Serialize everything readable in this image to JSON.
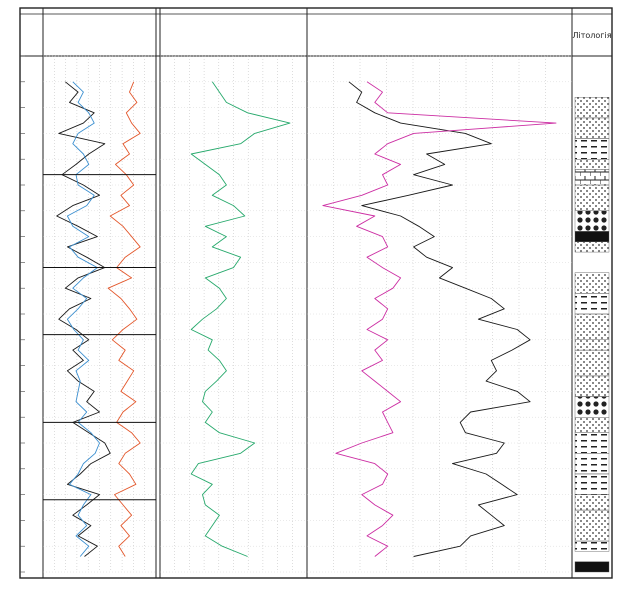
{
  "chart_data": {
    "type": "line",
    "title": "",
    "ylabel": "",
    "xlabel": "",
    "grid": true,
    "depth_range": [
      0,
      100
    ],
    "lithology_header": "Лiтологiя",
    "tracks": [
      {
        "id": "track-1",
        "header_label": "",
        "x_range": [
          0,
          100
        ],
        "ticks": [],
        "series": [
          {
            "name": "",
            "color": "#1a1a1a",
            "depth": [
              5,
              7,
              9,
              11,
              13,
              15,
              17,
              19,
              21,
              23,
              25,
              27,
              29,
              31,
              33,
              35,
              37,
              39,
              41,
              43,
              45,
              47,
              49,
              51,
              53,
              55,
              57,
              59,
              61,
              63,
              65,
              67,
              69,
              71,
              73,
              75,
              77,
              79,
              81,
              83,
              85,
              87,
              89,
              91,
              93,
              95,
              97
            ],
            "values": [
              18,
              30,
              22,
              45,
              35,
              12,
              55,
              40,
              28,
              15,
              35,
              50,
              25,
              10,
              30,
              48,
              20,
              38,
              55,
              30,
              18,
              42,
              22,
              12,
              28,
              40,
              25,
              35,
              20,
              30,
              45,
              38,
              50,
              25,
              40,
              55,
              60,
              42,
              32,
              20,
              50,
              38,
              25,
              42,
              30,
              48,
              36
            ]
          },
          {
            "name": "",
            "color": "#3b8fd0",
            "depth": [
              5,
              7,
              9,
              11,
              13,
              15,
              17,
              19,
              21,
              23,
              25,
              27,
              29,
              31,
              33,
              35,
              37,
              39,
              41,
              43,
              45,
              47,
              49,
              51,
              53,
              55,
              57,
              59,
              61,
              63,
              65,
              67,
              69,
              71,
              73,
              75,
              77,
              79,
              81,
              83,
              85,
              87,
              89,
              91,
              93,
              95,
              97
            ],
            "values": [
              25,
              35,
              30,
              40,
              45,
              30,
              25,
              35,
              40,
              28,
              30,
              45,
              38,
              20,
              25,
              40,
              22,
              30,
              48,
              35,
              25,
              38,
              30,
              20,
              26,
              35,
              30,
              40,
              28,
              32,
              30,
              28,
              38,
              30,
              42,
              50,
              46,
              35,
              30,
              22,
              42,
              35,
              30,
              38,
              28,
              40,
              32
            ]
          },
          {
            "name": "",
            "color": "#e3572b",
            "depth": [
              5,
              7,
              9,
              11,
              13,
              15,
              17,
              19,
              21,
              23,
              25,
              27,
              29,
              31,
              33,
              35,
              37,
              39,
              41,
              43,
              45,
              47,
              49,
              51,
              53,
              55,
              57,
              59,
              61,
              63,
              65,
              67,
              69,
              71,
              73,
              75,
              77,
              79,
              81,
              83,
              85,
              87,
              89,
              91,
              93,
              95,
              97
            ],
            "values": [
              82,
              78,
              85,
              75,
              80,
              88,
              72,
              78,
              65,
              75,
              82,
              70,
              78,
              60,
              72,
              80,
              88,
              74,
              66,
              80,
              58,
              70,
              78,
              85,
              72,
              62,
              74,
              68,
              82,
              76,
              70,
              84,
              72,
              66,
              80,
              88,
              74,
              68,
              78,
              84,
              64,
              72,
              80,
              70,
              78,
              68,
              74
            ]
          }
        ]
      },
      {
        "id": "track-2",
        "header_label": "",
        "x_range": [
          0,
          100
        ],
        "ticks": [],
        "series": [
          {
            "name": "",
            "color": "#27a96c",
            "depth": [
              5,
              7,
              9,
              11,
              13,
              15,
              17,
              19,
              21,
              23,
              25,
              27,
              29,
              31,
              33,
              35,
              37,
              39,
              41,
              43,
              45,
              47,
              49,
              51,
              53,
              55,
              57,
              59,
              61,
              63,
              65,
              67,
              69,
              71,
              73,
              75,
              77,
              79,
              81,
              83,
              85,
              87,
              89,
              91,
              93,
              95,
              97
            ],
            "values": [
              35,
              40,
              45,
              60,
              90,
              65,
              55,
              20,
              30,
              40,
              45,
              35,
              50,
              58,
              30,
              45,
              35,
              55,
              50,
              30,
              40,
              45,
              38,
              28,
              20,
              35,
              32,
              40,
              45,
              38,
              30,
              28,
              35,
              30,
              40,
              65,
              55,
              25,
              20,
              35,
              28,
              30,
              40,
              35,
              30,
              42,
              60
            ]
          }
        ]
      },
      {
        "id": "track-3",
        "header_label": "",
        "x_range": [
          0,
          100
        ],
        "ticks": [],
        "series": [
          {
            "name": "",
            "color": "#1a1a1a",
            "depth": [
              5,
              7,
              9,
              11,
              13,
              15,
              17,
              19,
              21,
              23,
              25,
              27,
              29,
              31,
              33,
              35,
              37,
              39,
              41,
              43,
              45,
              47,
              49,
              51,
              53,
              55,
              57,
              59,
              61,
              63,
              65,
              67,
              69,
              71,
              73,
              75,
              77,
              79,
              81,
              83,
              85,
              87,
              89,
              91,
              93,
              95,
              97
            ],
            "values": [
              15,
              20,
              18,
              25,
              35,
              60,
              70,
              45,
              52,
              40,
              55,
              38,
              20,
              35,
              42,
              48,
              40,
              45,
              55,
              50,
              60,
              70,
              75,
              65,
              80,
              85,
              78,
              70,
              72,
              68,
              80,
              85,
              62,
              58,
              60,
              75,
              72,
              55,
              68,
              74,
              80,
              65,
              70,
              75,
              62,
              58,
              40
            ]
          },
          {
            "name": "",
            "color": "#cc2ea3",
            "depth": [
              5,
              7,
              9,
              11,
              13,
              15,
              17,
              19,
              21,
              23,
              25,
              27,
              29,
              31,
              33,
              35,
              37,
              39,
              41,
              43,
              45,
              47,
              49,
              51,
              53,
              55,
              57,
              59,
              61,
              63,
              65,
              67,
              69,
              71,
              73,
              75,
              77,
              79,
              81,
              83,
              85,
              87,
              89,
              91,
              93,
              95,
              97
            ],
            "values": [
              22,
              28,
              25,
              30,
              95,
              40,
              30,
              25,
              35,
              28,
              30,
              20,
              5,
              25,
              18,
              28,
              30,
              22,
              28,
              35,
              32,
              25,
              30,
              28,
              22,
              30,
              25,
              28,
              20,
              25,
              30,
              35,
              28,
              30,
              32,
              20,
              10,
              25,
              30,
              28,
              20,
              25,
              32,
              28,
              22,
              30,
              25
            ]
          }
        ]
      }
    ],
    "lithology": [
      {
        "from": 8,
        "to": 12,
        "pattern": "dots"
      },
      {
        "from": 12,
        "to": 16,
        "pattern": "dots"
      },
      {
        "from": 16,
        "to": 20,
        "pattern": "dashes"
      },
      {
        "from": 20,
        "to": 22,
        "pattern": "dots"
      },
      {
        "from": 22,
        "to": 25,
        "pattern": "bricks"
      },
      {
        "from": 25,
        "to": 30,
        "pattern": "dots"
      },
      {
        "from": 30,
        "to": 34,
        "pattern": "circles"
      },
      {
        "from": 34,
        "to": 36,
        "pattern": "solid"
      },
      {
        "from": 36,
        "to": 38,
        "pattern": "dots"
      },
      {
        "from": 42,
        "to": 46,
        "pattern": "dots"
      },
      {
        "from": 46,
        "to": 50,
        "pattern": "dashes"
      },
      {
        "from": 50,
        "to": 55,
        "pattern": "dots"
      },
      {
        "from": 55,
        "to": 57,
        "pattern": "dots"
      },
      {
        "from": 57,
        "to": 62,
        "pattern": "dots"
      },
      {
        "from": 62,
        "to": 66,
        "pattern": "dots"
      },
      {
        "from": 66,
        "to": 70,
        "pattern": "circles"
      },
      {
        "from": 70,
        "to": 73,
        "pattern": "dots"
      },
      {
        "from": 73,
        "to": 77,
        "pattern": "dashes"
      },
      {
        "from": 77,
        "to": 81,
        "pattern": "dashes"
      },
      {
        "from": 81,
        "to": 85,
        "pattern": "dashes"
      },
      {
        "from": 85,
        "to": 88,
        "pattern": "dots"
      },
      {
        "from": 88,
        "to": 94,
        "pattern": "dots"
      },
      {
        "from": 94,
        "to": 96,
        "pattern": "dashes"
      },
      {
        "from": 98,
        "to": 100,
        "pattern": "solid"
      }
    ],
    "zone_boundaries": [
      23,
      41,
      54,
      71,
      86
    ]
  }
}
